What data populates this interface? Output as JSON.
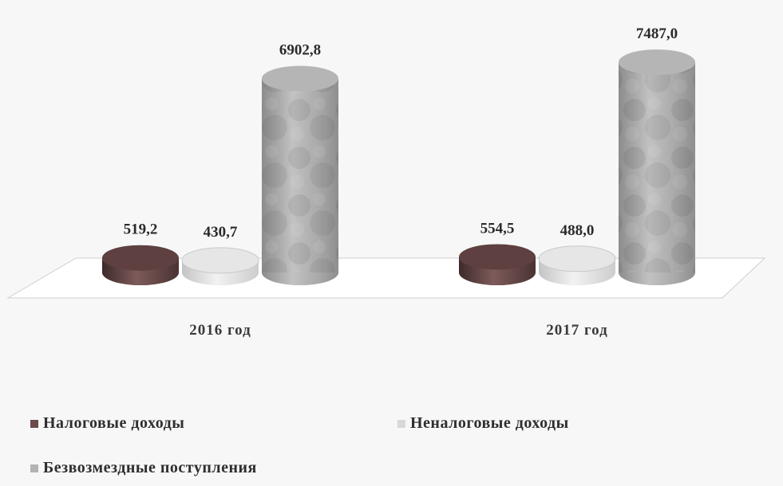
{
  "chart_data": {
    "type": "bar",
    "categories": [
      "2016 год",
      "2017 год"
    ],
    "series": [
      {
        "name": "Налоговые доходы",
        "values": [
          519.2,
          554.5
        ],
        "labels": [
          "519,2",
          "554,5"
        ],
        "color": "#6b4a49"
      },
      {
        "name": "Неналоговые доходы",
        "values": [
          430.7,
          488.0
        ],
        "labels": [
          "430,7",
          "488,0"
        ],
        "color": "#dcdcdc"
      },
      {
        "name": "Безвозмездные поступления",
        "values": [
          6902.8,
          7487.0
        ],
        "labels": [
          "6902,8",
          "7487,0"
        ],
        "color": "#aaaaaa"
      }
    ],
    "title": "",
    "xlabel": "",
    "ylabel": "",
    "ylim": [
      0,
      8000
    ],
    "grid": false,
    "legend_position": "bottom"
  }
}
